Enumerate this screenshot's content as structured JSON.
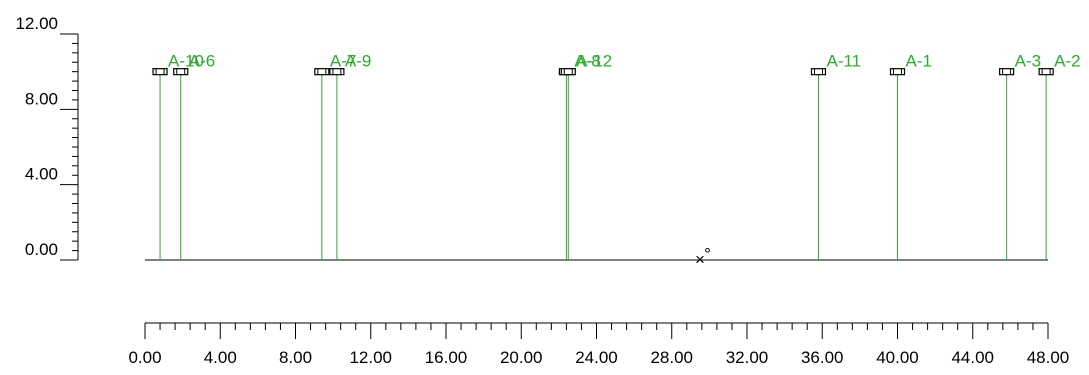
{
  "chart_data": {
    "type": "scatter",
    "title": "",
    "xlabel": "",
    "ylabel": "",
    "xlim": [
      0,
      48
    ],
    "ylim": [
      0,
      12
    ],
    "x_ticks": [
      "0.00",
      "4.00",
      "8.00",
      "12.00",
      "16.00",
      "20.00",
      "24.00",
      "28.00",
      "32.00",
      "36.00",
      "40.00",
      "44.00",
      "48.00"
    ],
    "y_ticks": [
      "0.00",
      "4.00",
      "8.00",
      "12.00"
    ],
    "grid": false,
    "colors": {
      "pole": "#2eaa2e",
      "label": "#2eaa2e",
      "axis": "#000000",
      "ground": "#000000"
    },
    "series": [
      {
        "name": "",
        "points": [
          {
            "label": "A-10",
            "x": 0.8,
            "y": 10.0
          },
          {
            "label": "A-6",
            "x": 1.9,
            "y": 10.0
          },
          {
            "label": "A-7",
            "x": 9.4,
            "y": 10.0
          },
          {
            "label": "A-9",
            "x": 10.2,
            "y": 10.0
          },
          {
            "label": "A-8",
            "x": 22.4,
            "y": 10.0
          },
          {
            "label": "A-12",
            "x": 22.5,
            "y": 10.0
          },
          {
            "label": "A-11",
            "x": 35.8,
            "y": 10.0
          },
          {
            "label": "A-1",
            "x": 40.0,
            "y": 10.0
          },
          {
            "label": "A-3",
            "x": 45.8,
            "y": 10.0
          },
          {
            "label": "A-2",
            "x": 47.9,
            "y": 10.0
          }
        ]
      }
    ],
    "markers": [
      {
        "symbol": "×",
        "x": 29.5,
        "y": 0.0
      },
      {
        "symbol": "°",
        "x": 29.9,
        "y": 0.3
      }
    ]
  }
}
